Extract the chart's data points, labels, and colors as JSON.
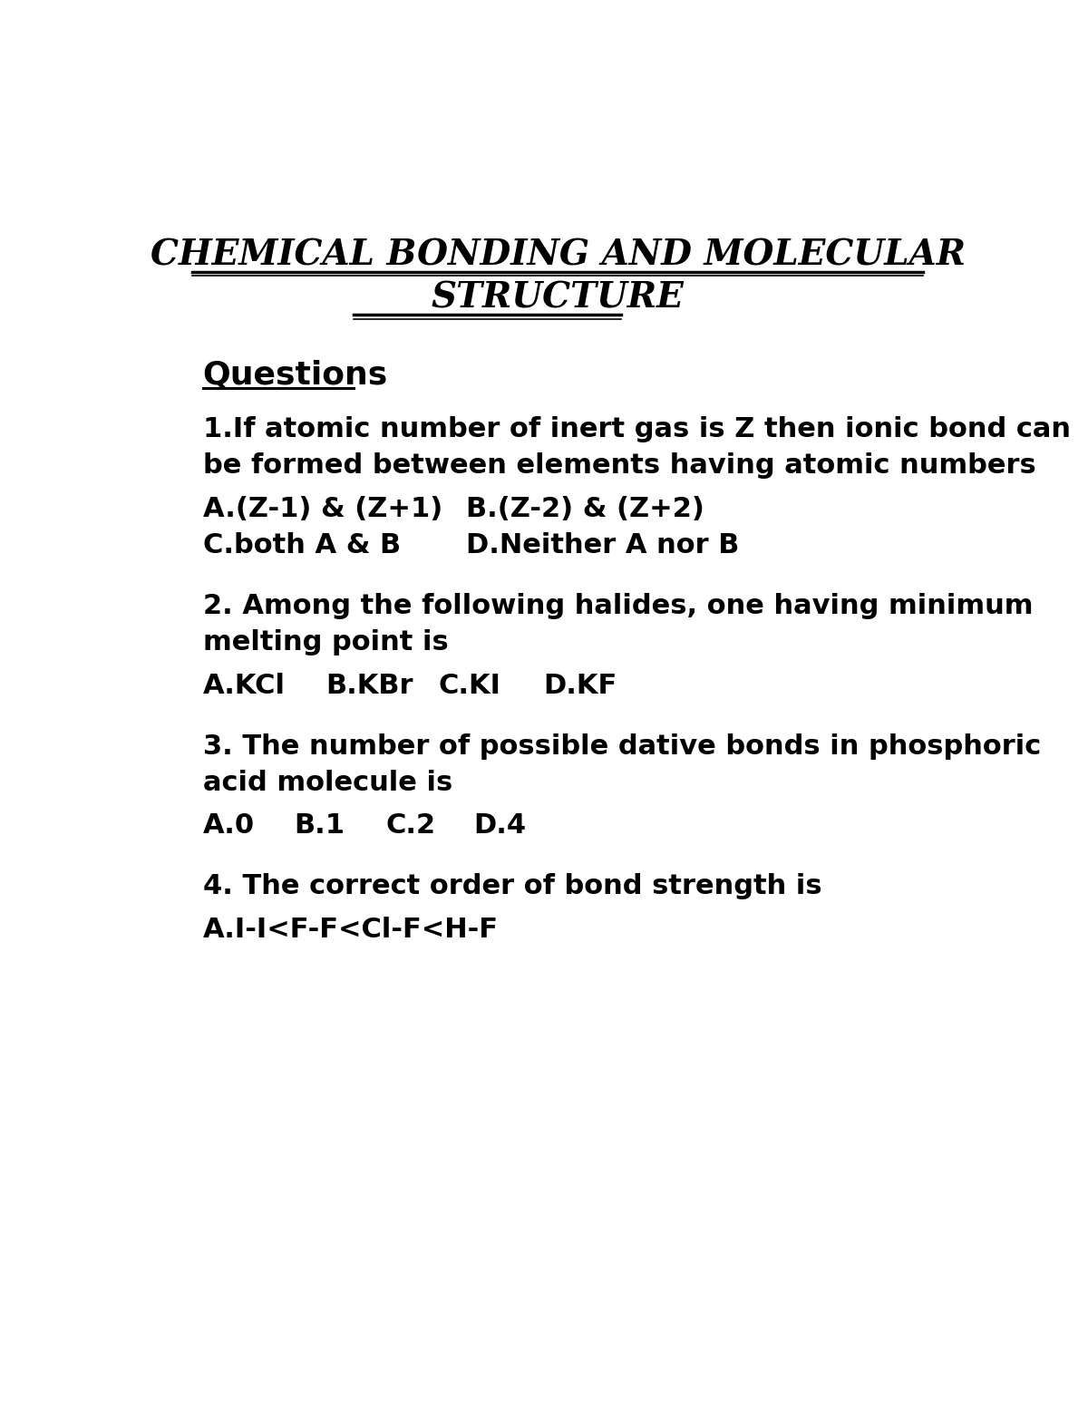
{
  "title_line1": "CHEMICAL BONDING AND MOLECULAR",
  "title_line2": "STRUCTURE",
  "section_header": "Questions",
  "background_color": "#ffffff",
  "text_color": "#000000",
  "title_fontsize": 28,
  "section_fontsize": 26,
  "body_fontsize": 22,
  "options_fontsize": 22,
  "q1_text1": "1.If atomic number of inert gas is Z then ionic bond can",
  "q1_text2": "be formed between elements having atomic numbers",
  "q1_optA": "A.(Z-1) & (Z+1)",
  "q1_optB": "B.(Z-2) & (Z+2)",
  "q1_optC": "C.both A & B",
  "q1_optD": "D.Neither A nor B",
  "q2_text1": "2. Among the following halides, one having minimum",
  "q2_text2": "melting point is",
  "q2_optA": "A.KCl",
  "q2_optB": "B.KBr",
  "q2_optC": "C.KI",
  "q2_optD": "D.KF",
  "q3_text1": "3. The number of possible dative bonds in phosphoric",
  "q3_text2": "acid molecule is",
  "q3_optA": "A.0",
  "q3_optB": "B.1",
  "q3_optC": "C.2",
  "q3_optD": "D.4",
  "q4_text1": "4. The correct order of bond strength is",
  "q4_optA": "A.I-I<F-F<Cl-F<H-F"
}
